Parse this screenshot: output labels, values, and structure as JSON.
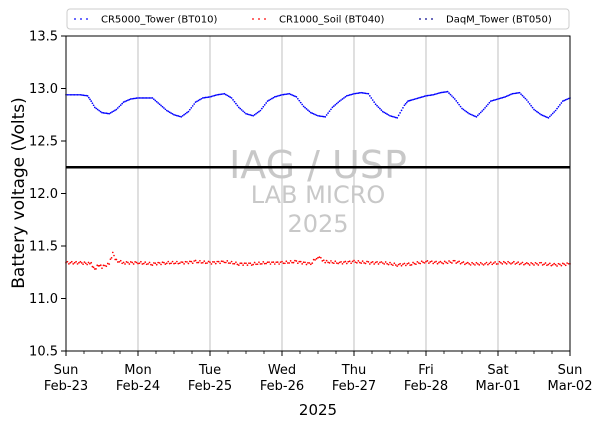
{
  "chart_data": {
    "type": "scatter",
    "title": "",
    "xlabel": "2025",
    "ylabel": "Battery voltage (Volts)",
    "ylim": [
      10.5,
      13.5
    ],
    "y_ticks": [
      "10.5",
      "11.0",
      "11.5",
      "12.0",
      "12.5",
      "13.0",
      "13.5"
    ],
    "x_range_days": [
      0,
      7
    ],
    "x_ticks": [
      {
        "day": 0,
        "line1": "Sun",
        "line2": "Feb-23"
      },
      {
        "day": 1,
        "line1": "Mon",
        "line2": "Feb-24"
      },
      {
        "day": 2,
        "line1": "Tue",
        "line2": "Feb-25"
      },
      {
        "day": 3,
        "line1": "Wed",
        "line2": "Feb-26"
      },
      {
        "day": 4,
        "line1": "Thu",
        "line2": "Feb-27"
      },
      {
        "day": 5,
        "line1": "Fri",
        "line2": "Feb-28"
      },
      {
        "day": 6,
        "line1": "Sat",
        "line2": "Mar-01"
      },
      {
        "day": 7,
        "line1": "Sun",
        "line2": "Mar-02"
      }
    ],
    "grid": "vertical",
    "legend": "top",
    "reference_line": {
      "y": 12.25,
      "color": "#000000"
    },
    "series": [
      {
        "name": "CR5000_Tower (BT010)",
        "color": "#0000ff",
        "x": [
          0.0,
          0.1,
          0.2,
          0.3,
          0.35,
          0.4,
          0.5,
          0.6,
          0.7,
          0.8,
          0.9,
          1.0,
          1.1,
          1.2,
          1.3,
          1.4,
          1.5,
          1.6,
          1.7,
          1.8,
          1.9,
          2.0,
          2.1,
          2.2,
          2.3,
          2.4,
          2.5,
          2.6,
          2.7,
          2.8,
          2.9,
          3.0,
          3.1,
          3.2,
          3.3,
          3.4,
          3.5,
          3.6,
          3.7,
          3.8,
          3.9,
          4.0,
          4.1,
          4.2,
          4.3,
          4.4,
          4.5,
          4.6,
          4.7,
          4.75,
          4.8,
          4.9,
          5.0,
          5.1,
          5.2,
          5.3,
          5.4,
          5.5,
          5.6,
          5.7,
          5.8,
          5.9,
          6.0,
          6.1,
          6.2,
          6.3,
          6.4,
          6.5,
          6.6,
          6.7,
          6.8,
          6.9,
          7.0
        ],
        "y": [
          12.94,
          12.94,
          12.94,
          12.93,
          12.88,
          12.82,
          12.77,
          12.76,
          12.8,
          12.87,
          12.9,
          12.91,
          12.91,
          12.91,
          12.85,
          12.79,
          12.75,
          12.73,
          12.78,
          12.87,
          12.91,
          12.92,
          12.94,
          12.95,
          12.91,
          12.82,
          12.76,
          12.74,
          12.79,
          12.88,
          12.92,
          12.94,
          12.95,
          12.92,
          12.83,
          12.77,
          12.74,
          12.73,
          12.82,
          12.88,
          12.93,
          12.95,
          12.96,
          12.95,
          12.85,
          12.78,
          12.74,
          12.72,
          12.84,
          12.88,
          12.89,
          12.91,
          12.93,
          12.94,
          12.96,
          12.97,
          12.9,
          12.81,
          12.76,
          12.73,
          12.8,
          12.88,
          12.9,
          12.92,
          12.95,
          12.96,
          12.89,
          12.8,
          12.75,
          12.72,
          12.79,
          12.88,
          12.91
        ]
      },
      {
        "name": "CR1000_Soil (BT040)",
        "color": "#ff0000",
        "x": [
          0.0,
          0.2,
          0.35,
          0.4,
          0.45,
          0.5,
          0.6,
          0.65,
          0.7,
          0.8,
          1.0,
          1.2,
          1.4,
          1.6,
          1.8,
          2.0,
          2.2,
          2.4,
          2.6,
          2.8,
          3.0,
          3.2,
          3.4,
          3.5,
          3.6,
          3.8,
          4.0,
          4.2,
          4.4,
          4.6,
          4.8,
          5.0,
          5.2,
          5.4,
          5.6,
          5.8,
          6.0,
          6.2,
          6.4,
          6.6,
          6.8,
          7.0
        ],
        "y": [
          11.34,
          11.34,
          11.33,
          11.28,
          11.32,
          11.3,
          11.33,
          11.43,
          11.36,
          11.34,
          11.34,
          11.33,
          11.34,
          11.34,
          11.35,
          11.34,
          11.35,
          11.33,
          11.33,
          11.34,
          11.34,
          11.35,
          11.33,
          11.4,
          11.35,
          11.34,
          11.35,
          11.34,
          11.34,
          11.32,
          11.33,
          11.35,
          11.34,
          11.35,
          11.33,
          11.33,
          11.34,
          11.34,
          11.33,
          11.33,
          11.32,
          11.33
        ]
      },
      {
        "name": "DaqM_Tower (BT050)",
        "color": "#00008b",
        "x": [],
        "y": []
      }
    ],
    "watermark": {
      "line1": "IAG / USP",
      "line2": "LAB MICRO",
      "line3": "2025"
    }
  }
}
